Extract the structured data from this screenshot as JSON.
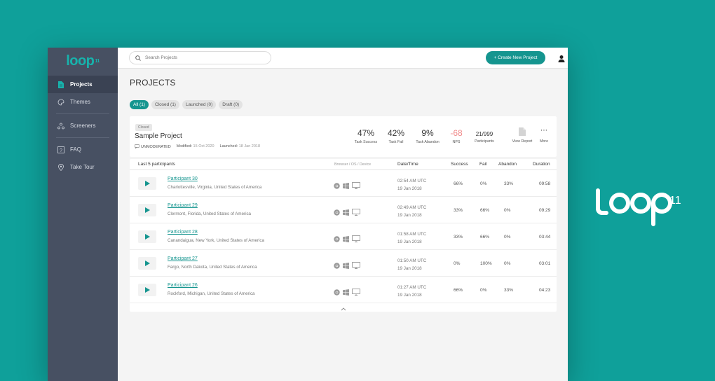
{
  "brand": {
    "name": "loop",
    "superscript": "11"
  },
  "sidebar": {
    "logo_text": "loop",
    "logo_sup": "11",
    "items": [
      {
        "label": "Projects",
        "icon": "document-icon",
        "active": true
      },
      {
        "label": "Themes",
        "icon": "palette-icon"
      },
      {
        "label": "Screeners",
        "icon": "screeners-icon"
      },
      {
        "label": "FAQ",
        "icon": "question-icon"
      },
      {
        "label": "Take Tour",
        "icon": "map-pin-icon"
      }
    ]
  },
  "topbar": {
    "search_placeholder": "Search Projects",
    "create_label": "+ Create New Project"
  },
  "page": {
    "title": "PROJECTS",
    "filters": [
      {
        "label": "All (1)",
        "active": true
      },
      {
        "label": "Closed (1)"
      },
      {
        "label": "Launched (0)"
      },
      {
        "label": "Draft (0)"
      }
    ]
  },
  "project": {
    "status": "Closed",
    "name": "Sample Project",
    "type": "UNMODERATED",
    "modified_label": "Modified:",
    "modified": "15 Oct 2020",
    "launched_label": "Launched:",
    "launched": "18 Jan 2018",
    "stats": [
      {
        "value": "47%",
        "label": "Task Success"
      },
      {
        "value": "42%",
        "label": "Task Fail"
      },
      {
        "value": "9%",
        "label": "Task Abandon"
      },
      {
        "value": "-68",
        "label": "NPS"
      },
      {
        "value": "21/999",
        "label": "Participants"
      }
    ],
    "actions": [
      {
        "label": "View Report",
        "icon": "report-icon"
      },
      {
        "label": "More",
        "icon": "ellipsis-icon"
      }
    ]
  },
  "table": {
    "headers": {
      "participants": "Last 5 participants",
      "device": "Browser / OS / Device",
      "datetime": "Date/Time",
      "success": "Success",
      "fail": "Fail",
      "abandon": "Abandon",
      "duration": "Duration"
    },
    "rows": [
      {
        "name": "Participant 30",
        "location": "Charlottesville, Virginia, United States of America",
        "time": "02:54 AM UTC",
        "date": "19 Jan 2018",
        "success": "66%",
        "fail": "0%",
        "abandon": "33%",
        "duration": "09:58"
      },
      {
        "name": "Participant 29",
        "location": "Clermont, Florida, United States of America",
        "time": "02:49 AM UTC",
        "date": "19 Jan 2018",
        "success": "33%",
        "fail": "66%",
        "abandon": "0%",
        "duration": "09:29"
      },
      {
        "name": "Participant 28",
        "location": "Canandaigua, New York, United States of America",
        "time": "01:58 AM UTC",
        "date": "19 Jan 2018",
        "success": "33%",
        "fail": "66%",
        "abandon": "0%",
        "duration": "03:44"
      },
      {
        "name": "Participant 27",
        "location": "Fargo, North Dakota, United States of America",
        "time": "01:50 AM UTC",
        "date": "19 Jan 2018",
        "success": "0%",
        "fail": "100%",
        "abandon": "0%",
        "duration": "03:01"
      },
      {
        "name": "Participant 26",
        "location": "Rockford, Michigan, United States of America",
        "time": "01:27 AM UTC",
        "date": "19 Jan 2018",
        "success": "66%",
        "fail": "0%",
        "abandon": "33%",
        "duration": "04:23"
      }
    ]
  },
  "colors": {
    "teal": "#15958f",
    "background": "#0fa09a",
    "sidebar": "#475062",
    "nps_negative": "#f08a8a"
  }
}
